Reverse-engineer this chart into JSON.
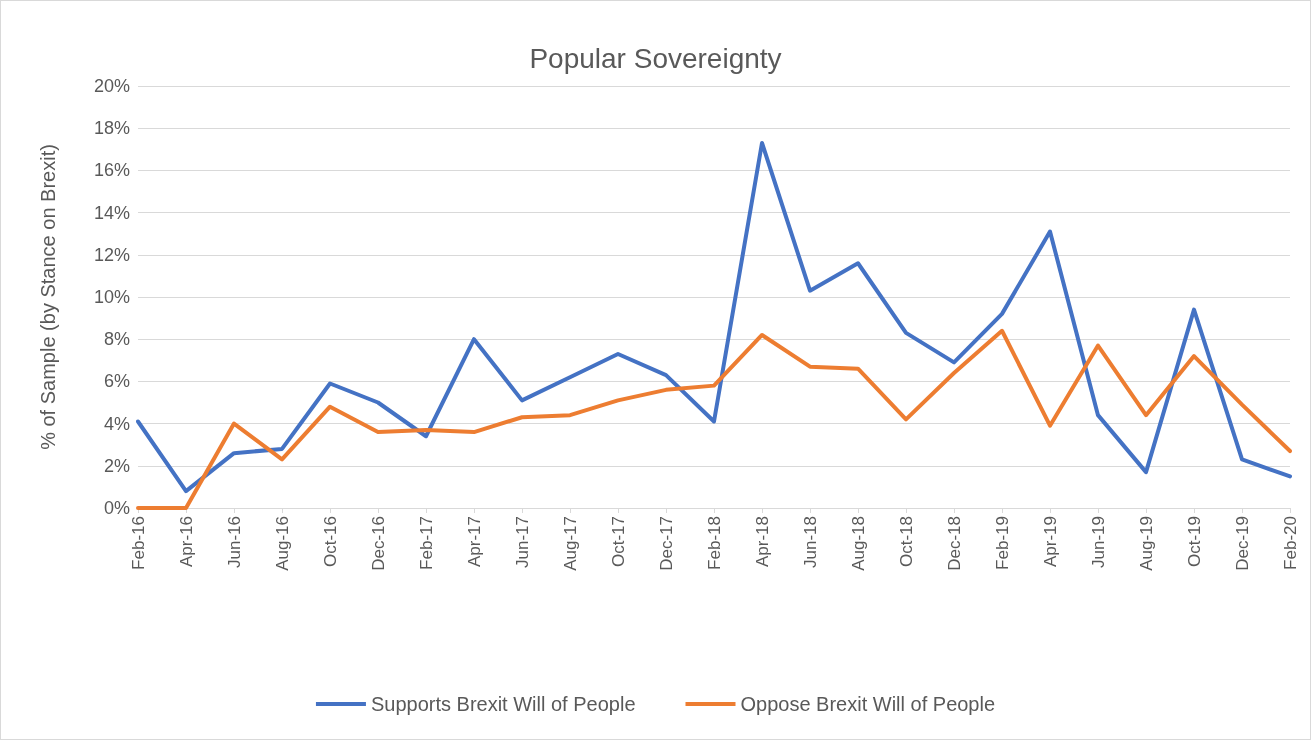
{
  "chart_data": {
    "type": "line",
    "title": "Popular Sovereignty",
    "ylabel": "% of Sample (by Stance on Brexit)",
    "categories": [
      "Feb-16",
      "Apr-16",
      "Jun-16",
      "Aug-16",
      "Oct-16",
      "Dec-16",
      "Feb-17",
      "Apr-17",
      "Jun-17",
      "Aug-17",
      "Oct-17",
      "Dec-17",
      "Feb-18",
      "Apr-18",
      "Jun-18",
      "Aug-18",
      "Oct-18",
      "Dec-18",
      "Feb-19",
      "Apr-19",
      "Jun-19",
      "Aug-19",
      "Oct-19",
      "Dec-19",
      "Feb-20"
    ],
    "series": [
      {
        "name": "Supports Brexit Will of People",
        "color": "#4472c4",
        "values": [
          4.1,
          0.8,
          2.6,
          2.8,
          5.9,
          5.0,
          3.4,
          8.0,
          5.1,
          6.2,
          7.3,
          6.3,
          4.1,
          17.3,
          10.3,
          11.6,
          8.3,
          6.9,
          9.2,
          13.1,
          4.4,
          1.7,
          9.4,
          2.3,
          1.5
        ]
      },
      {
        "name": "Oppose Brexit Will of People",
        "color": "#ed7d31",
        "values": [
          0,
          0,
          4.0,
          2.3,
          4.8,
          3.6,
          3.7,
          3.6,
          4.3,
          4.4,
          5.1,
          5.6,
          5.8,
          8.2,
          6.7,
          6.6,
          4.2,
          6.4,
          8.4,
          3.9,
          7.7,
          4.4,
          7.2,
          4.9,
          2.7
        ]
      }
    ],
    "ylim": [
      0,
      20
    ],
    "yticks": [
      {
        "value": 0,
        "label": "0%"
      },
      {
        "value": 2,
        "label": "2%"
      },
      {
        "value": 4,
        "label": "4%"
      },
      {
        "value": 6,
        "label": "6%"
      },
      {
        "value": 8,
        "label": "8%"
      },
      {
        "value": 10,
        "label": "10%"
      },
      {
        "value": 12,
        "label": "12%"
      },
      {
        "value": 14,
        "label": "14%"
      },
      {
        "value": 16,
        "label": "16%"
      },
      {
        "value": 18,
        "label": "18%"
      },
      {
        "value": 20,
        "label": "20%"
      }
    ],
    "grid": "y",
    "legend": "bottom",
    "marker": "none",
    "line_style": "solid"
  }
}
